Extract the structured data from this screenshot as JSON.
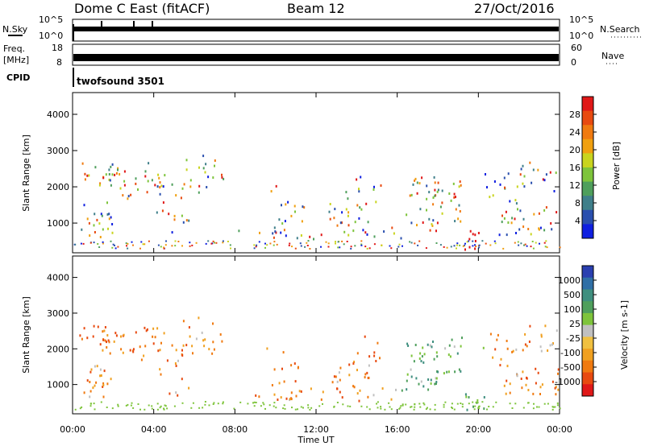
{
  "header": {
    "station": "Dome C East (fitACF)",
    "beam": "Beam 12",
    "date": "27/Oct/2016"
  },
  "top_panels": {
    "nsky_label": "N.Sky",
    "nsky_ticks": [
      "10^5",
      "10^0"
    ],
    "nsearch_label": "N.Search",
    "nsearch_ticks": [
      "10^5",
      "10^0"
    ],
    "freq_label_1": "Freq.",
    "freq_label_2": "[MHz]",
    "freq_ticks": [
      "18",
      "8"
    ],
    "nave_label": "Nave",
    "nave_ticks": [
      "60",
      "0"
    ],
    "cpid_label": "CPID",
    "cpid_value": "twofsound 3501"
  },
  "chart_data": [
    {
      "type": "heatmap",
      "title": "",
      "ylabel": "Slant Range [km]",
      "ylim": [
        180,
        4600
      ],
      "y_ticks": [
        "1000",
        "2000",
        "3000",
        "4000"
      ],
      "x_ticks": [
        "00:00",
        "04:00",
        "08:00",
        "12:00",
        "16:00",
        "20:00",
        "00:00"
      ],
      "xlim_hours": [
        0,
        24
      ],
      "colorbar": {
        "label": "Power [dB]",
        "ticks": [
          "4",
          "8",
          "12",
          "16",
          "20",
          "24",
          "28"
        ],
        "range": [
          0,
          30
        ],
        "colors": [
          "#0f1fe0",
          "#2a4fae",
          "#3f7f8a",
          "#4f9f5c",
          "#7ec43b",
          "#c9d41e",
          "#f0a010",
          "#f07a10",
          "#e84a10",
          "#e01818"
        ]
      }
    },
    {
      "type": "heatmap",
      "title": "",
      "ylabel": "Slant Range [km]",
      "ylim": [
        180,
        4600
      ],
      "y_ticks": [
        "1000",
        "2000",
        "3000",
        "4000"
      ],
      "x_ticks": [
        "00:00",
        "04:00",
        "08:00",
        "12:00",
        "16:00",
        "20:00",
        "00:00"
      ],
      "xlim_hours": [
        0,
        24
      ],
      "xlabel": "Time UT",
      "colorbar": {
        "label": "Velocity [m s-1]",
        "ticks": [
          "1000",
          "500",
          "100",
          "25",
          "-25",
          "-100",
          "-500",
          "-1000"
        ],
        "colors": [
          "#2a3fb0",
          "#2f6fa6",
          "#3f8f7f",
          "#4f9f5c",
          "#7ec43b",
          "#c0c0c0",
          "#f0c040",
          "#f0a020",
          "#f07a10",
          "#e84a10",
          "#e01818"
        ]
      }
    }
  ]
}
